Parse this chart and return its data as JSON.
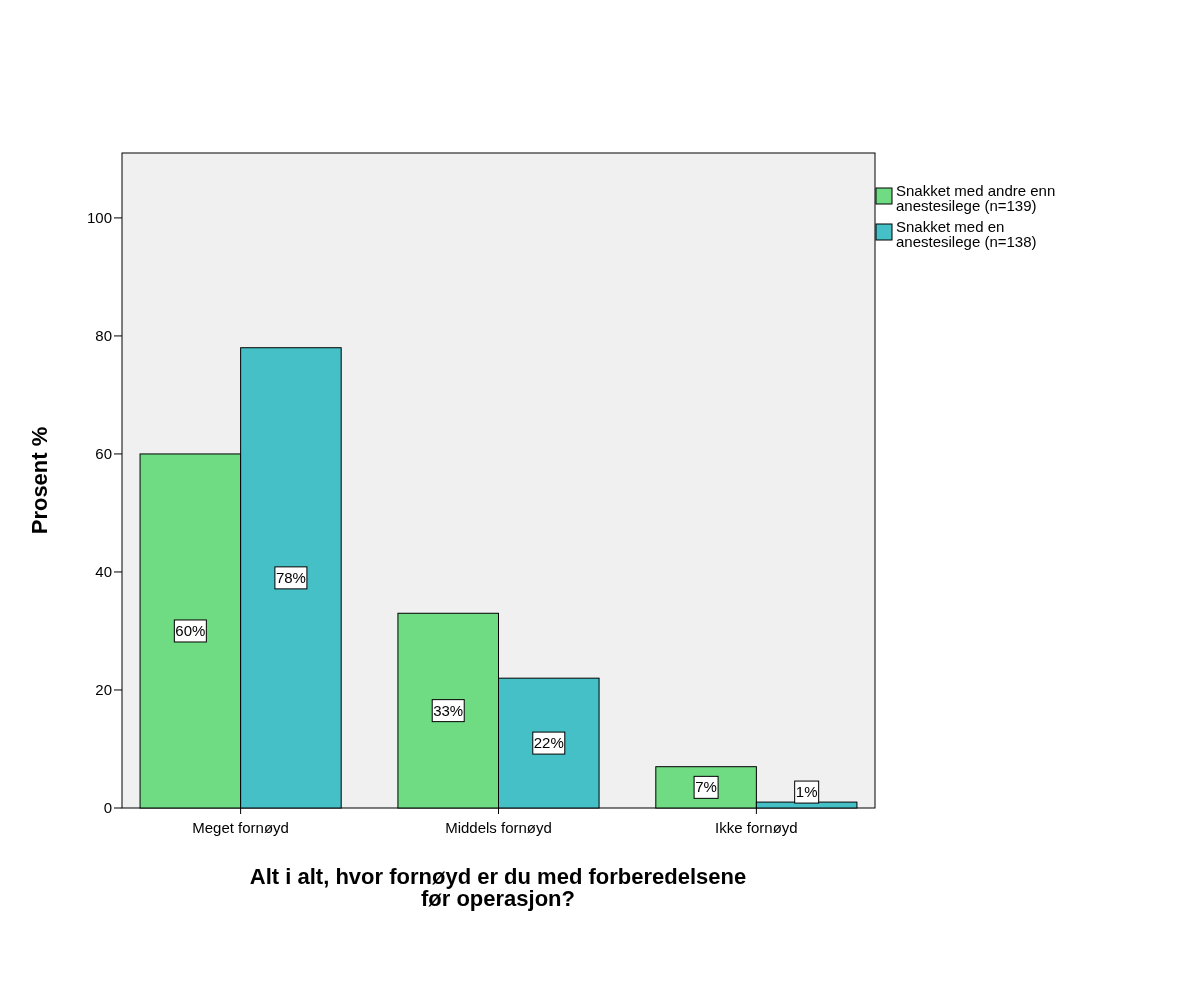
{
  "chart_data": {
    "type": "bar",
    "xlabel": "Alt i alt, hvor fornøyd er du med forberedelsene før operasjon?",
    "ylabel": "Prosent %",
    "categories": [
      "Meget fornøyd",
      "Middels fornøyd",
      "Ikke fornøyd"
    ],
    "series": [
      {
        "name": "Snakket med andre enn anestesilege (n=139)",
        "color": "#6fdc84",
        "values": [
          60,
          33,
          7
        ],
        "value_labels": [
          "60%",
          "33%",
          "7%"
        ]
      },
      {
        "name": "Snakket med en anestesilege (n=138)",
        "color": "#45c0c6",
        "values": [
          78,
          22,
          1
        ],
        "value_labels": [
          "78%",
          "22%",
          "1%"
        ]
      }
    ],
    "ylim": [
      0,
      111
    ],
    "yticks": [
      0,
      20,
      40,
      60,
      80,
      100
    ],
    "grid": false,
    "legend": "top right"
  }
}
